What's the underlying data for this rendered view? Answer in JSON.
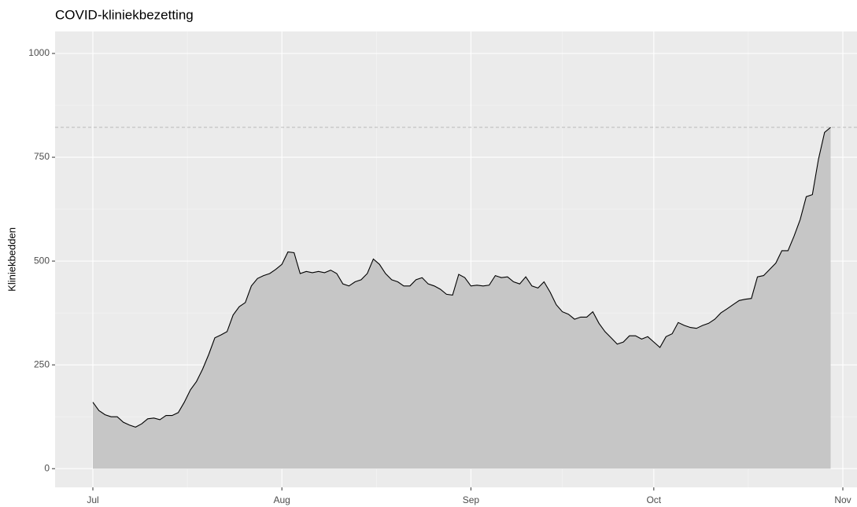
{
  "chart_data": {
    "type": "area",
    "title": "COVID-kliniekbezetting",
    "y_label": "Kliniekbedden",
    "categories": [
      "Jul",
      null,
      null,
      null,
      null,
      null,
      null,
      null,
      null,
      null,
      null,
      null,
      null,
      null,
      null,
      null,
      null,
      null,
      null,
      null,
      null,
      null,
      null,
      null,
      null,
      null,
      null,
      null,
      null,
      null,
      null,
      "Aug",
      null,
      null,
      null,
      null,
      null,
      null,
      null,
      null,
      null,
      null,
      null,
      null,
      null,
      null,
      null,
      null,
      null,
      null,
      null,
      null,
      null,
      null,
      null,
      null,
      null,
      null,
      null,
      null,
      null,
      null,
      "Sep",
      null,
      null,
      null,
      null,
      null,
      null,
      null,
      null,
      null,
      null,
      null,
      null,
      null,
      null,
      null,
      null,
      null,
      null,
      null,
      null,
      null,
      null,
      null,
      null,
      null,
      null,
      null,
      null,
      null,
      "Oct",
      null,
      null,
      null,
      null,
      null,
      null,
      null,
      null,
      null,
      null,
      null,
      null,
      null,
      null,
      null,
      null,
      null,
      null,
      null,
      null,
      null,
      null,
      null,
      null,
      null,
      null,
      null,
      null,
      null,
      null,
      "Nov"
    ],
    "values": [
      160,
      140,
      130,
      125,
      125,
      112,
      105,
      100,
      108,
      120,
      122,
      118,
      128,
      128,
      135,
      160,
      190,
      210,
      240,
      275,
      315,
      322,
      330,
      370,
      390,
      400,
      440,
      458,
      465,
      470,
      480,
      492,
      522,
      520,
      470,
      475,
      472,
      475,
      472,
      478,
      470,
      445,
      440,
      450,
      455,
      470,
      505,
      492,
      470,
      455,
      450,
      440,
      440,
      455,
      460,
      445,
      440,
      432,
      420,
      418,
      468,
      460,
      440,
      442,
      440,
      442,
      465,
      460,
      462,
      450,
      445,
      462,
      440,
      435,
      450,
      425,
      395,
      378,
      372,
      360,
      365,
      365,
      378,
      350,
      330,
      315,
      300,
      305,
      320,
      320,
      312,
      318,
      305,
      292,
      318,
      325,
      352,
      345,
      340,
      338,
      345,
      350,
      360,
      375,
      385,
      395,
      405,
      408,
      410,
      462,
      465,
      480,
      495,
      525,
      525,
      560,
      600,
      655,
      660,
      745,
      810,
      822,
      null,
      null
    ],
    "color": "#c6c6c6",
    "line_color": "#000000",
    "ylim": [
      -45,
      1053
    ],
    "yticks": [
      0,
      250,
      500,
      750,
      1000
    ],
    "grid": true,
    "max_line": true
  }
}
